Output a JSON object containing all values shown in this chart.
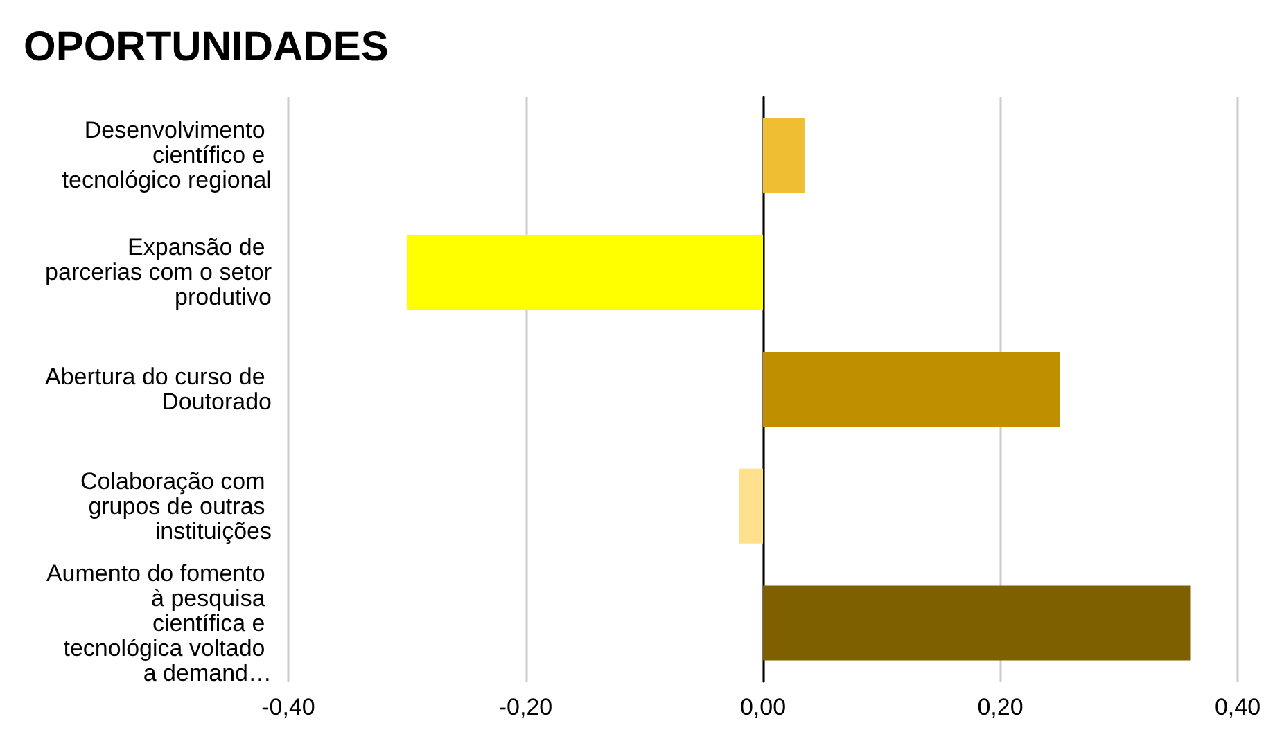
{
  "chart_data": {
    "type": "bar",
    "orientation": "horizontal",
    "title": "OPORTUNIDADES",
    "categories": [
      "Desenvolvimento científico e tecnológico regional",
      "Expansão de parcerias com o setor produtivo",
      "Abertura do curso de Doutorado",
      "Colaboração com grupos de outras instituições",
      "Aumento do fomento à pesquisa científica e tecnológica voltado a demand…"
    ],
    "values": [
      0.035,
      -0.3,
      0.25,
      -0.02,
      0.36
    ],
    "colors": [
      "#f0be32",
      "#ffff00",
      "#bf8f00",
      "#ffe08c",
      "#7f6000"
    ],
    "xlim": [
      -0.4,
      0.4
    ],
    "xticks": [
      {
        "value": -0.4,
        "label": "-0,40"
      },
      {
        "value": -0.2,
        "label": "-0,20"
      },
      {
        "value": 0,
        "label": "0,00"
      },
      {
        "value": 0.2,
        "label": "0,20"
      },
      {
        "value": 0.4,
        "label": "0,40"
      }
    ],
    "grid": "x"
  }
}
